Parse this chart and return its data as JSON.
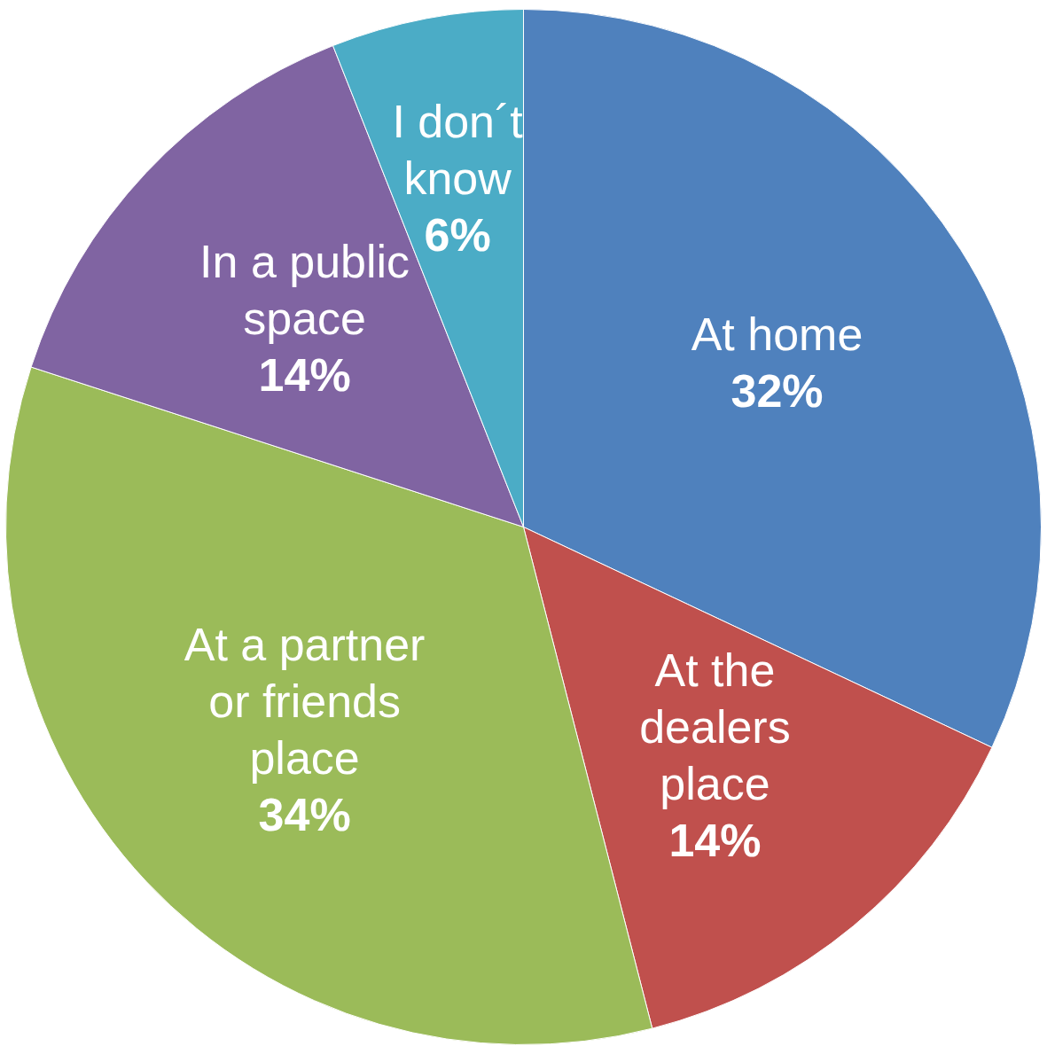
{
  "chart_data": {
    "type": "pie",
    "categories": [
      "At home",
      "At the dealers place",
      "At a partner or friends place",
      "In a public space",
      "I don´t know"
    ],
    "values": [
      32,
      14,
      34,
      14,
      6
    ],
    "colors": [
      "#4f81bd",
      "#c0504d",
      "#9bbb59",
      "#8064a2",
      "#4bacc6"
    ],
    "value_labels": [
      "32%",
      "14%",
      "34%",
      "14%",
      "6%"
    ]
  }
}
